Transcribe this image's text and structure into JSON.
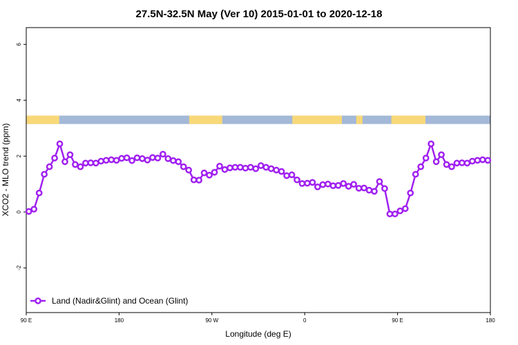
{
  "chart_data": {
    "type": "line",
    "title": "27.5N-32.5N May (Ver 10)   2015-01-01 to 2020-12-18",
    "xlabel": "Longitude (deg E)",
    "ylabel": "XCO2 - MLO trend (ppm)",
    "xlim": [
      90,
      540
    ],
    "ylim": [
      -3.6,
      6.6
    ],
    "x_ticks": [
      {
        "value": 90,
        "label": "90 E"
      },
      {
        "value": 180,
        "label": "180"
      },
      {
        "value": 270,
        "label": "90 W"
      },
      {
        "value": 360,
        "label": "0"
      },
      {
        "value": 450,
        "label": "90 E"
      },
      {
        "value": 540,
        "label": "180"
      }
    ],
    "y_ticks": [
      {
        "value": -2,
        "label": "-2"
      },
      {
        "value": 0,
        "label": "0"
      },
      {
        "value": 2,
        "label": "2"
      },
      {
        "value": 4,
        "label": "4"
      },
      {
        "value": 6,
        "label": "6"
      }
    ],
    "land_ocean_strip": {
      "y_range": [
        3.15,
        3.45
      ],
      "ocean_color": "#a4b8d8",
      "land_color": "#f8d878",
      "land_segments": [
        [
          90,
          122
        ],
        [
          248,
          280
        ],
        [
          348,
          396
        ],
        [
          410,
          416
        ],
        [
          444,
          477
        ]
      ]
    },
    "series": [
      {
        "name": "Land (Nadir&Glint) and Ocean (Glint)",
        "color": "#a020f0",
        "x": [
          92.5,
          97.5,
          102.5,
          107.5,
          112.5,
          117.5,
          122.5,
          127.5,
          132.5,
          137.5,
          142.5,
          147.5,
          152.5,
          157.5,
          162.5,
          167.5,
          172.5,
          177.5,
          182.5,
          187.5,
          192.5,
          197.5,
          202.5,
          207.5,
          212.5,
          217.5,
          222.5,
          227.5,
          232.5,
          237.5,
          242.5,
          247.5,
          252.5,
          257.5,
          262.5,
          267.5,
          272.5,
          277.5,
          282.5,
          287.5,
          292.5,
          297.5,
          302.5,
          307.5,
          312.5,
          317.5,
          322.5,
          327.5,
          332.5,
          337.5,
          342.5,
          347.5,
          352.5,
          357.5,
          362.5,
          367.5,
          372.5,
          377.5,
          382.5,
          387.5,
          392.5,
          397.5,
          402.5,
          407.5,
          412.5,
          417.5,
          422.5,
          427.5,
          432.5,
          437.5,
          442.5,
          447.5,
          452.5,
          457.5,
          462.5,
          467.5,
          472.5,
          477.5,
          482.5,
          487.5,
          492.5,
          497.5,
          502.5,
          507.5,
          512.5,
          517.5,
          522.5,
          527.5,
          532.5,
          537.5
        ],
        "values": [
          0.02,
          0.1,
          0.68,
          1.35,
          1.62,
          1.93,
          2.44,
          1.8,
          2.05,
          1.7,
          1.62,
          1.75,
          1.76,
          1.75,
          1.82,
          1.85,
          1.87,
          1.85,
          1.92,
          1.94,
          1.84,
          1.94,
          1.91,
          1.86,
          1.95,
          1.93,
          2.07,
          1.91,
          1.84,
          1.8,
          1.62,
          1.5,
          1.15,
          1.14,
          1.4,
          1.32,
          1.42,
          1.64,
          1.52,
          1.58,
          1.6,
          1.6,
          1.57,
          1.6,
          1.55,
          1.66,
          1.6,
          1.55,
          1.5,
          1.45,
          1.3,
          1.33,
          1.15,
          1.02,
          1.03,
          1.06,
          0.9,
          0.98,
          1.0,
          0.94,
          0.95,
          1.02,
          0.92,
          0.99,
          0.85,
          0.86,
          0.78,
          0.74,
          1.09,
          0.84,
          -0.07,
          -0.07,
          0.04,
          0.12,
          0.68,
          1.35,
          1.62,
          1.93,
          2.44,
          1.8,
          2.05,
          1.7,
          1.62,
          1.75,
          1.76,
          1.75,
          1.82,
          1.85,
          1.87,
          1.85
        ]
      }
    ],
    "legend": {
      "position": "bottom-left"
    },
    "grid": false
  }
}
